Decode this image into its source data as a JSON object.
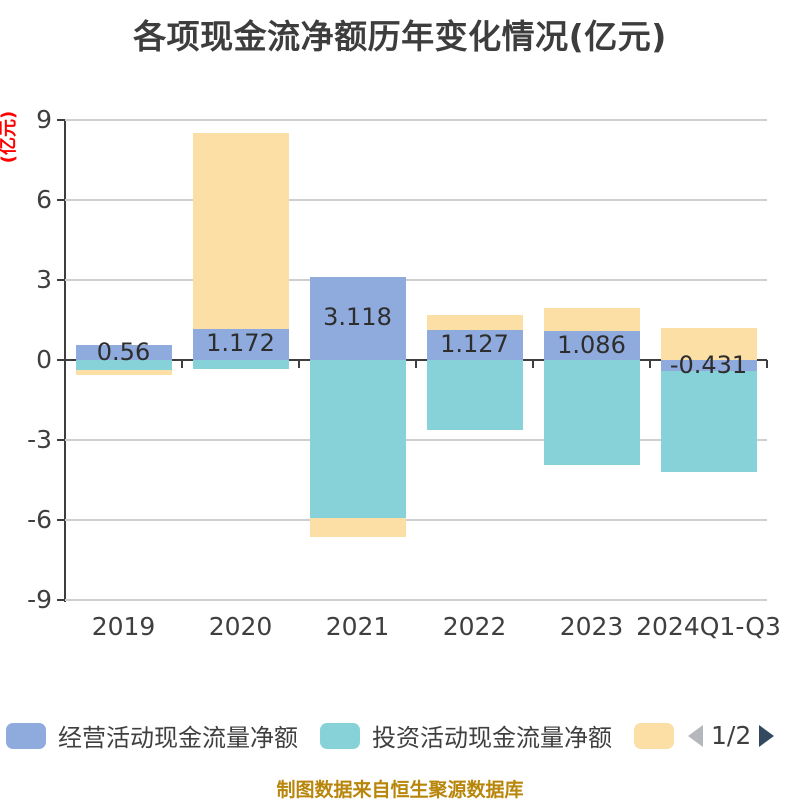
{
  "title": "各项现金流净额历年变化情况(亿元)",
  "y_unit_label": "(亿元)",
  "footer_note": "制图数据来自恒生聚源数据库",
  "pagination": {
    "current": "1/2"
  },
  "legend": {
    "items": [
      {
        "label": "经营活动现金流量净额",
        "color": "#8faadc"
      },
      {
        "label": "投资活动现金流量净额",
        "color": "#87d2d8"
      },
      {
        "label": "",
        "color": "#fcdfa4"
      }
    ]
  },
  "chart_data": {
    "type": "bar",
    "stacked": true,
    "title": "各项现金流净额历年变化情况(亿元)",
    "categories": [
      "2019",
      "2020",
      "2021",
      "2022",
      "2023",
      "2024Q1-Q3"
    ],
    "series": [
      {
        "name": "经营活动现金流量净额",
        "color": "#8faadc",
        "values": [
          0.56,
          1.172,
          3.118,
          1.127,
          1.086,
          -0.431
        ]
      },
      {
        "name": "投资活动现金流量净额",
        "color": "#87d2d8",
        "values": [
          -0.39,
          -0.35,
          -5.93,
          -2.63,
          -3.94,
          -3.77
        ]
      },
      {
        "name": "",
        "color": "#fcdfa4",
        "values": [
          -0.19,
          7.34,
          -0.71,
          0.56,
          0.87,
          1.2
        ]
      }
    ],
    "data_labels": [
      "0.56",
      "1.172",
      "3.118",
      "1.127",
      "1.086",
      "-0.431"
    ],
    "ylabel": "(亿元)",
    "yticks": [
      9,
      6,
      3,
      0,
      -3,
      -6,
      -9
    ],
    "ylim": [
      -9,
      9
    ],
    "grid": true,
    "legend_position": "bottom"
  },
  "colors": {
    "grid": "#cfcfcf",
    "axis": "#3f3f3f",
    "title_text": "#3d3d3d",
    "unit_label": "#ff0000",
    "footer_text": "#b8860b",
    "prev_arrow": "#b4b8bd",
    "next_arrow": "#35495e"
  }
}
